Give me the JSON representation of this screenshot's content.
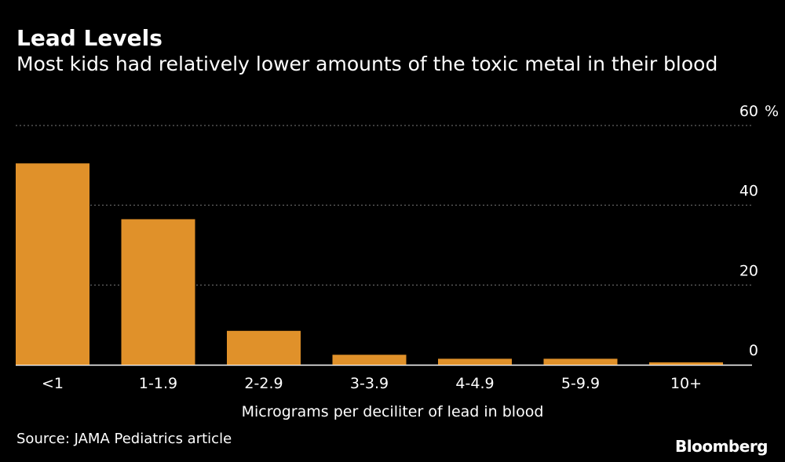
{
  "header": {
    "title": "Lead Levels",
    "subtitle": "Most kids had relatively lower amounts of the toxic metal in their blood"
  },
  "footer": {
    "source": "Source: JAMA Pediatrics article",
    "brand": "Bloomberg"
  },
  "colors": {
    "bar": "#e0912a",
    "background": "#000000",
    "text": "#ffffff",
    "grid": "#7a7a7a"
  },
  "chart_data": {
    "type": "bar",
    "title": "Lead Levels",
    "subtitle": "Most kids had relatively lower amounts of the toxic metal in their blood",
    "categories": [
      "<1",
      "1-1.9",
      "2-2.9",
      "3-3.9",
      "4-4.9",
      "5-9.9",
      "10+"
    ],
    "values": [
      50.5,
      36.5,
      8.5,
      2.5,
      1.5,
      1.5,
      0.6
    ],
    "xlabel": "Micrograms per deciliter of lead in blood",
    "ylabel": "",
    "ylim": [
      0,
      60
    ],
    "yticks": [
      0,
      20,
      40,
      60
    ],
    "ytick_labels": [
      "0",
      "20",
      "40",
      "60"
    ],
    "y_unit": "%",
    "grid": true,
    "legend": "none"
  }
}
